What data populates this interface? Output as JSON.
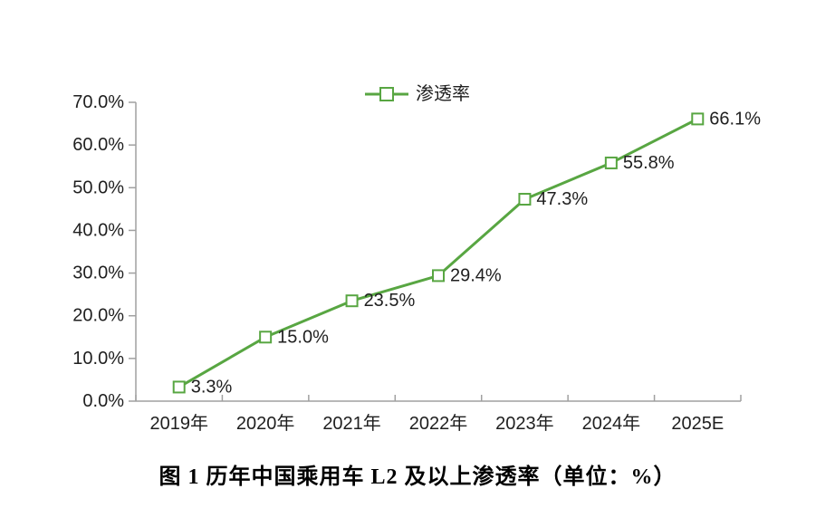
{
  "page": {
    "background": "#ffffff"
  },
  "legend": {
    "label": "渗透率"
  },
  "chart_data": {
    "type": "line",
    "title": "",
    "categories": [
      "2019年",
      "2020年",
      "2021年",
      "2022年",
      "2023年",
      "2024年",
      "2025E"
    ],
    "series": [
      {
        "name": "渗透率",
        "values": [
          3.3,
          15.0,
          23.5,
          29.4,
          47.3,
          55.8,
          66.1
        ],
        "labels": [
          "3.3%",
          "15.0%",
          "23.5%",
          "29.4%",
          "47.3%",
          "55.8%",
          "66.1%"
        ]
      }
    ],
    "y_tick_labels": [
      "0.0%",
      "10.0%",
      "20.0%",
      "30.0%",
      "40.0%",
      "50.0%",
      "60.0%",
      "70.0%"
    ],
    "ylim": [
      0,
      70
    ],
    "y_tick_step": 10,
    "grid": false,
    "legend_position": "top",
    "marker": "open-square",
    "colors": {
      "line": "#58a642",
      "marker_fill": "#ffffff",
      "axis": "#a0a0a0",
      "text": "#1f1f1f"
    }
  },
  "caption": {
    "text": "图 1 历年中国乘用车 L2 及以上渗透率（单位：%）"
  }
}
